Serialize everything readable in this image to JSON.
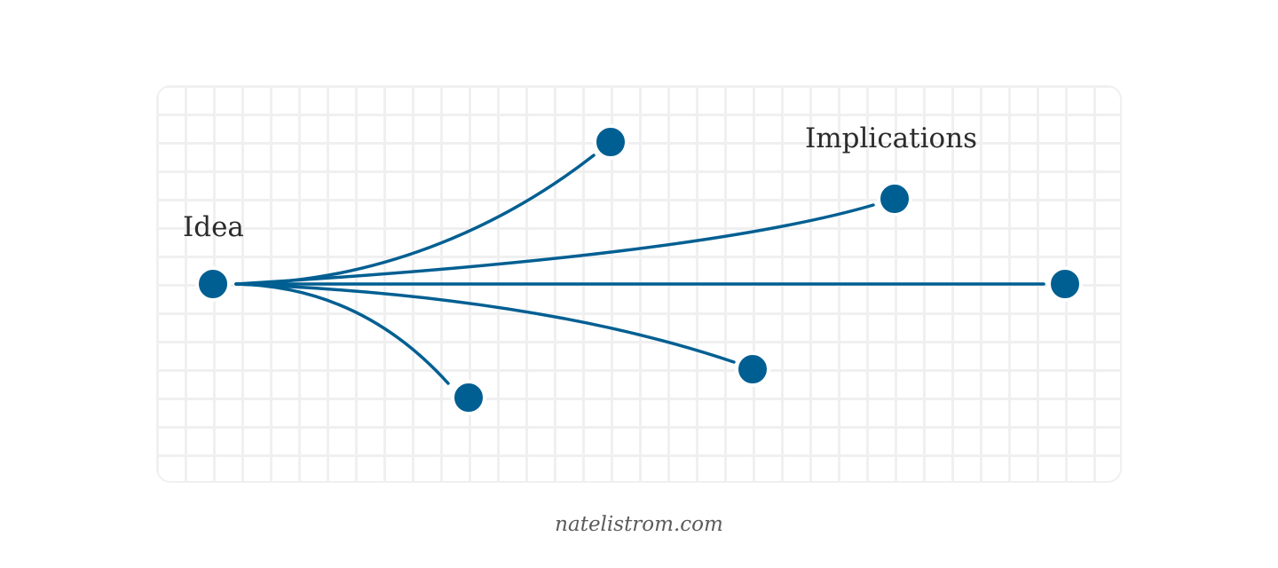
{
  "diagram": {
    "source_label": "Idea",
    "group_label": "Implications",
    "colors": {
      "line": "#005f92",
      "node": "#005f92",
      "grid": "#f0f0f0",
      "label": "#2b2b2b",
      "footer": "#5b5b5b"
    },
    "edges": [
      {
        "from": "idea",
        "to": "implication-1"
      },
      {
        "from": "idea",
        "to": "implication-2"
      },
      {
        "from": "idea",
        "to": "implication-3"
      },
      {
        "from": "idea",
        "to": "implication-4"
      },
      {
        "from": "idea",
        "to": "implication-5"
      }
    ]
  },
  "footer": {
    "credit": "natelistrom.com"
  }
}
